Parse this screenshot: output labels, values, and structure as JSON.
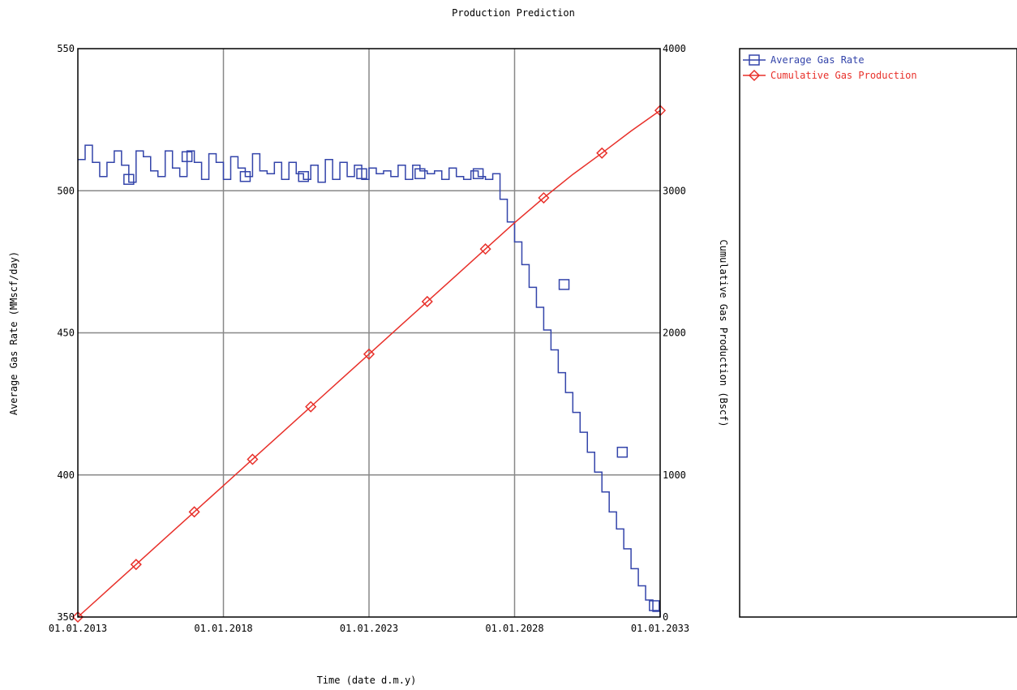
{
  "chart_data": {
    "type": "line",
    "title": "Production Prediction",
    "xlabel": "Time (date d.m.y)",
    "ylabel": "Average Gas Rate (MMscf/day)",
    "y2label": "Cumulative Gas Production (Bscf)",
    "xlim": [
      2013.0,
      2033.0
    ],
    "ylim": [
      350,
      550
    ],
    "y2lim": [
      0,
      4000
    ],
    "x_tick_labels": [
      "01.01.2013",
      "01.01.2018",
      "01.01.2023",
      "01.01.2028",
      "01.01.2033"
    ],
    "x_ticks": [
      2013.0,
      2018.0,
      2023.0,
      2028.0,
      2033.0
    ],
    "y_ticks": [
      350,
      400,
      450,
      500,
      550
    ],
    "y2_ticks": [
      0,
      1000,
      2000,
      3000,
      4000
    ],
    "grid": true,
    "legend_position": "right-panel",
    "series": [
      {
        "name": "Average Gas Rate",
        "axis": "left",
        "step": true,
        "color": "#3344aa",
        "marker": "square",
        "marker_x": [
          2014.75,
          2016.75,
          2018.75,
          2020.75,
          2022.75,
          2024.75,
          2026.75,
          2029.7,
          2031.7,
          2032.8
        ],
        "marker_y": [
          504,
          512,
          505,
          505,
          506,
          506,
          506,
          467,
          408,
          354
        ],
        "x": [
          2013.0,
          2013.25,
          2013.5,
          2013.75,
          2014.0,
          2014.25,
          2014.5,
          2014.75,
          2015.0,
          2015.25,
          2015.5,
          2015.75,
          2016.0,
          2016.25,
          2016.5,
          2016.75,
          2017.0,
          2017.25,
          2017.5,
          2017.75,
          2018.0,
          2018.25,
          2018.5,
          2018.75,
          2019.0,
          2019.25,
          2019.5,
          2019.75,
          2020.0,
          2020.25,
          2020.5,
          2020.75,
          2021.0,
          2021.25,
          2021.5,
          2021.75,
          2022.0,
          2022.25,
          2022.5,
          2022.75,
          2023.0,
          2023.25,
          2023.5,
          2023.75,
          2024.0,
          2024.25,
          2024.5,
          2024.75,
          2025.0,
          2025.25,
          2025.5,
          2025.75,
          2026.0,
          2026.25,
          2026.5,
          2026.75,
          2027.0,
          2027.25,
          2027.5,
          2027.75,
          2028.0,
          2028.25,
          2028.5,
          2028.75,
          2029.0,
          2029.25,
          2029.5,
          2029.75,
          2030.0,
          2030.25,
          2030.5,
          2030.75,
          2031.0,
          2031.25,
          2031.5,
          2031.75,
          2032.0,
          2032.25,
          2032.5,
          2032.75,
          2033.0
        ],
        "values": [
          511,
          516,
          510,
          505,
          510,
          514,
          509,
          503,
          514,
          512,
          507,
          505,
          514,
          508,
          505,
          514,
          510,
          504,
          513,
          510,
          504,
          512,
          508,
          505,
          513,
          507,
          506,
          510,
          504,
          510,
          506,
          504,
          509,
          503,
          511,
          504,
          510,
          505,
          509,
          504,
          508,
          506,
          507,
          505,
          509,
          504,
          509,
          507,
          506,
          507,
          504,
          508,
          505,
          504,
          507,
          505,
          504,
          506,
          497,
          489,
          482,
          474,
          466,
          459,
          451,
          444,
          436,
          429,
          422,
          415,
          408,
          401,
          394,
          387,
          381,
          374,
          367,
          361,
          356,
          352,
          350
        ]
      },
      {
        "name": "Cumulative Gas Production",
        "axis": "right",
        "step": false,
        "color": "#e8302a",
        "marker": "diamond",
        "marker_x": [
          2013.0,
          2015.0,
          2017.0,
          2019.0,
          2021.0,
          2023.0,
          2025.0,
          2027.0,
          2029.0,
          2031.0,
          2033.0
        ],
        "x": [
          2013.0,
          2014.0,
          2015.0,
          2016.0,
          2017.0,
          2018.0,
          2019.0,
          2020.0,
          2021.0,
          2022.0,
          2023.0,
          2024.0,
          2025.0,
          2026.0,
          2027.0,
          2028.0,
          2029.0,
          2030.0,
          2031.0,
          2032.0,
          2033.0
        ],
        "values": [
          0,
          185,
          370,
          555,
          740,
          925,
          1110,
          1295,
          1480,
          1665,
          1850,
          2035,
          2220,
          2405,
          2590,
          2775,
          2950,
          3115,
          3265,
          3420,
          3565
        ]
      }
    ]
  },
  "colors": {
    "axis": "#000000",
    "grid": "#888888",
    "rate": "#3344aa",
    "cumulative": "#e8302a"
  }
}
